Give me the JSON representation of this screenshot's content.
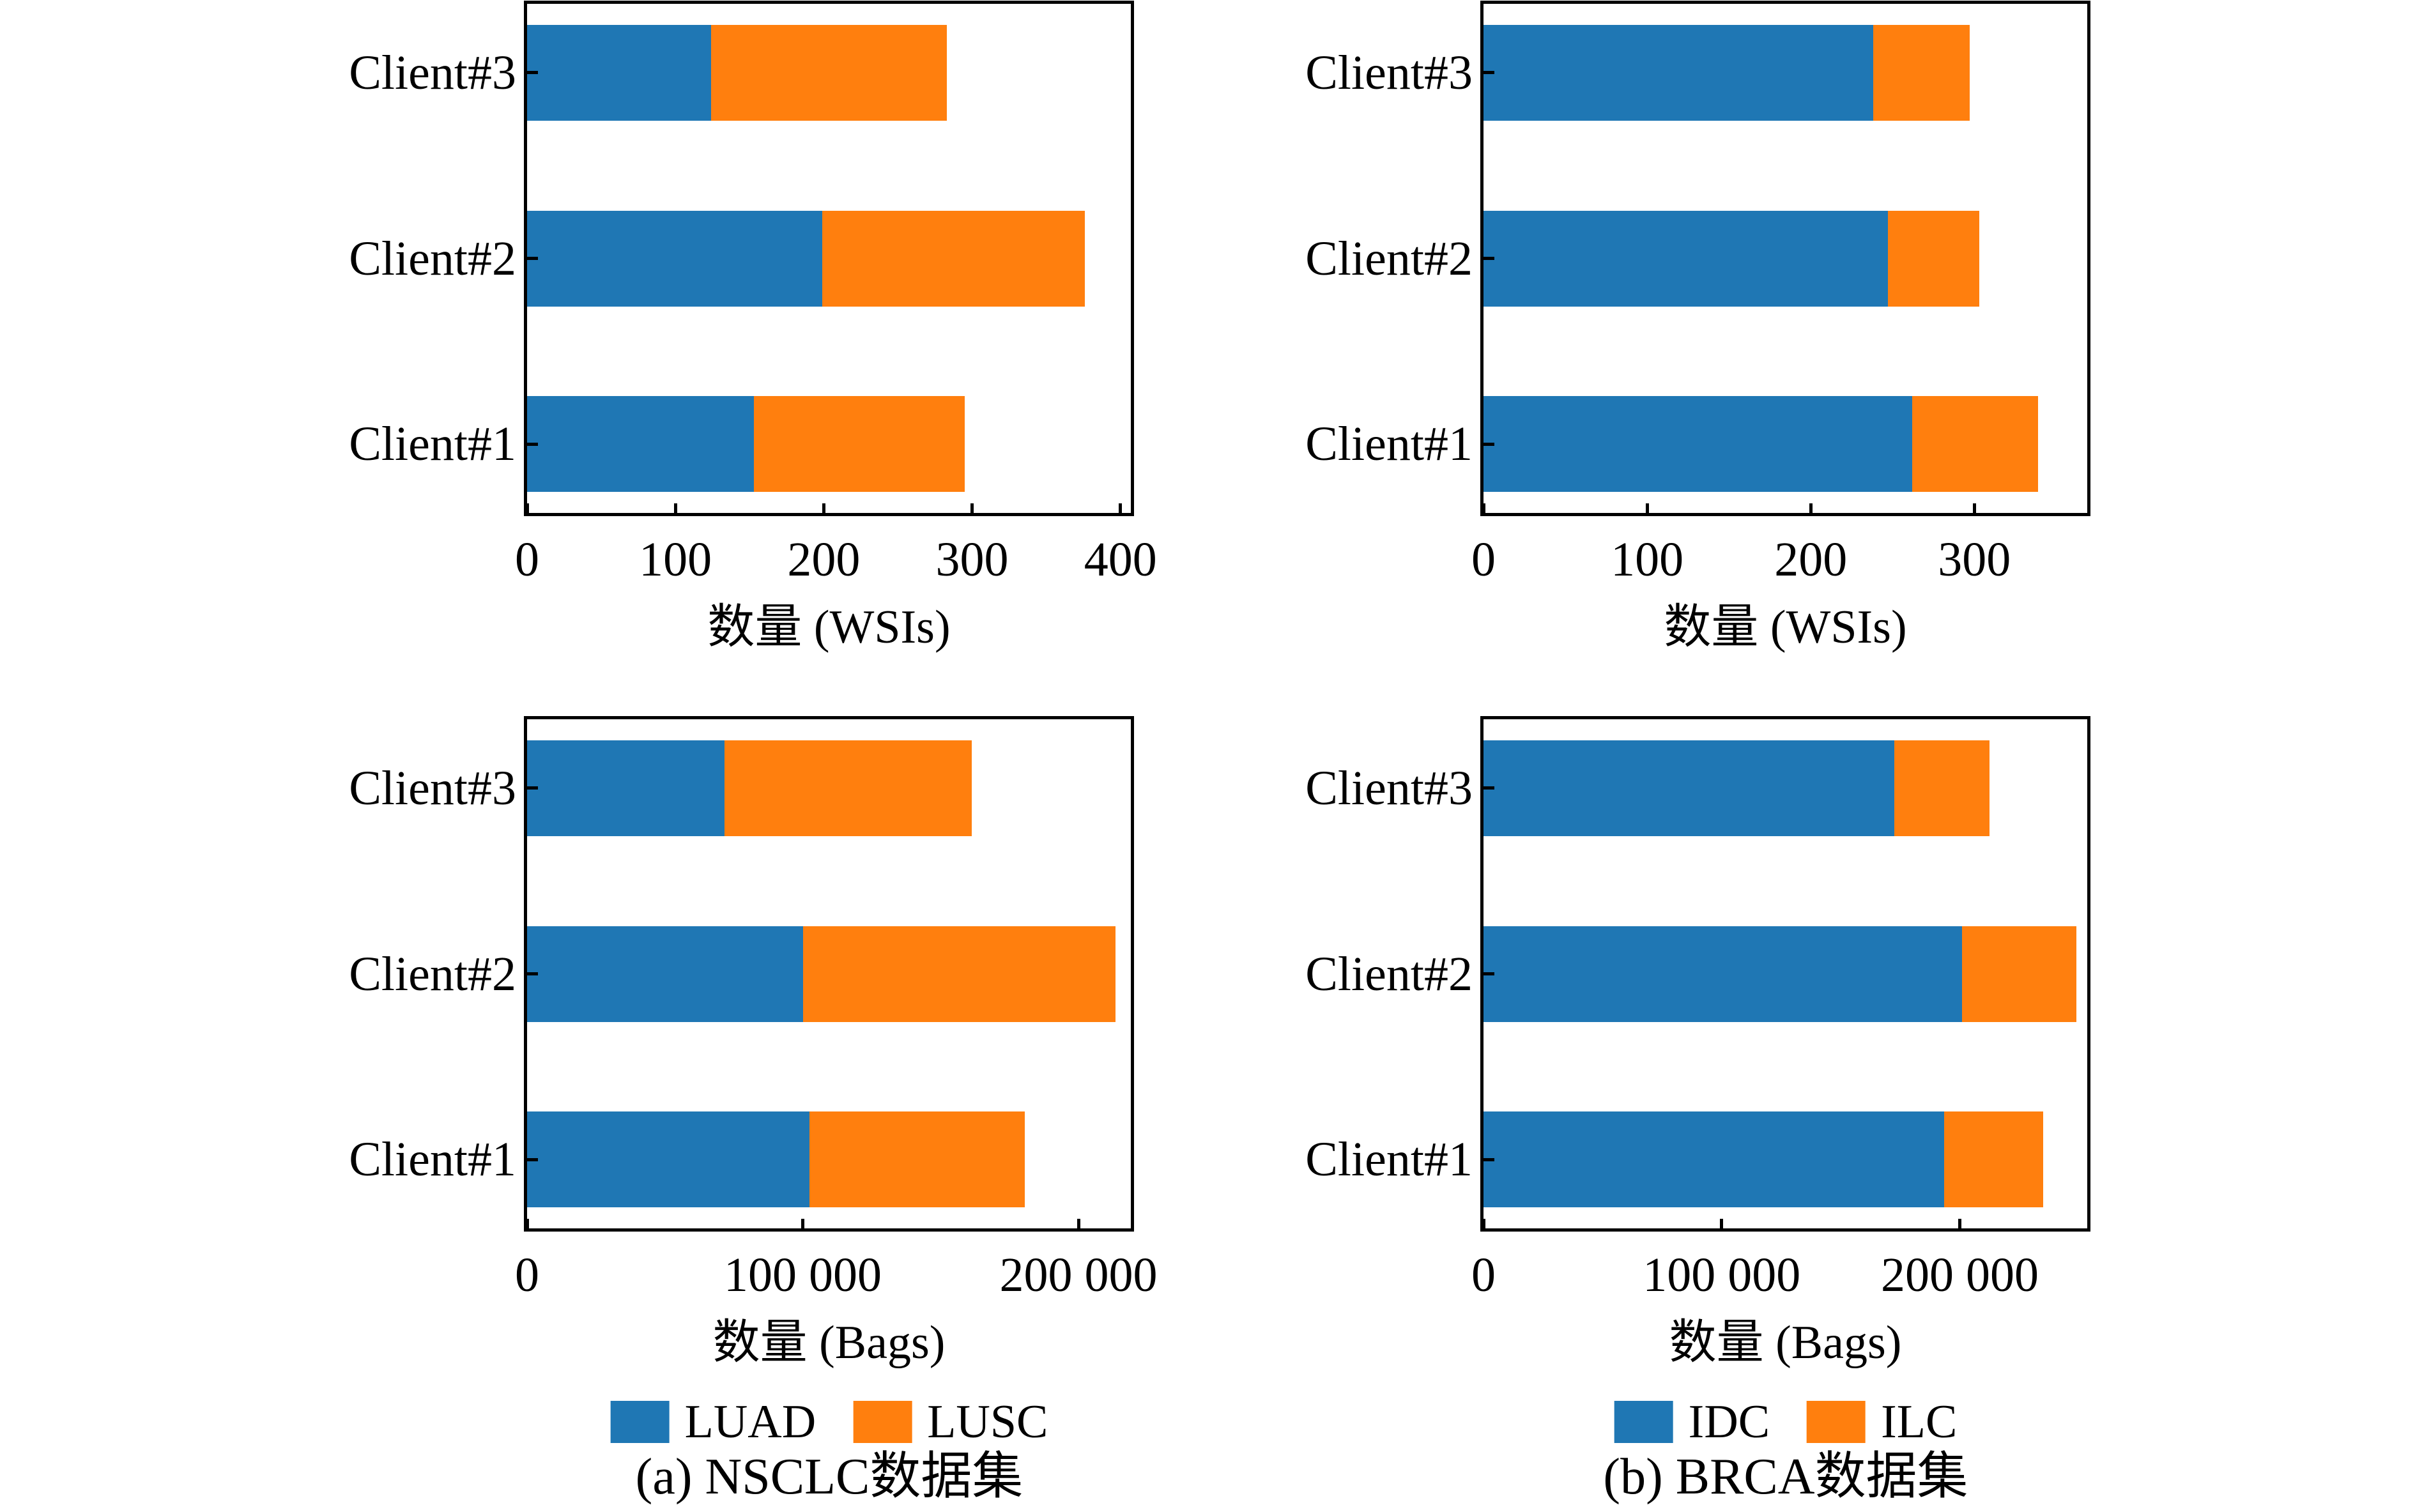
{
  "figure": {
    "background": "#ffffff",
    "frame_color": "#000000",
    "tick_style": "inward",
    "left": {
      "legend": [
        {
          "label": "LUAD",
          "color": "#1f77b4"
        },
        {
          "label": "LUSC",
          "color": "#ff7f0e"
        }
      ],
      "caption": "(a) NSCLC数据集"
    },
    "right": {
      "legend": [
        {
          "label": "IDC",
          "color": "#1f77b4"
        },
        {
          "label": "ILC",
          "color": "#ff7f0e"
        }
      ],
      "caption": "(b) BRCA数据集"
    }
  },
  "chart_data": [
    {
      "id": "nsclc-wsis",
      "position": "top-left",
      "type": "bar",
      "orientation": "horizontal",
      "stacked": true,
      "title": "",
      "xlabel": "数量 (WSIs)",
      "ylabel": "",
      "categories_top_to_bottom": [
        "Client#3",
        "Client#2",
        "Client#1"
      ],
      "series": [
        {
          "name": "LUAD",
          "color": "#1f77b4",
          "values": [
            124,
            199,
            153
          ]
        },
        {
          "name": "LUSC",
          "color": "#ff7f0e",
          "values": [
            159,
            177,
            142
          ]
        }
      ],
      "totals": [
        283,
        376,
        295
      ],
      "xlim": [
        0,
        407
      ],
      "xticks": [
        0,
        100,
        200,
        300,
        400
      ],
      "xtick_labels": [
        "0",
        "100",
        "200",
        "300",
        "400"
      ],
      "grid": false,
      "legend_position": "shared-below-column"
    },
    {
      "id": "brca-wsis",
      "position": "top-right",
      "type": "bar",
      "orientation": "horizontal",
      "stacked": true,
      "title": "",
      "xlabel": "数量 (WSIs)",
      "ylabel": "",
      "categories_top_to_bottom": [
        "Client#3",
        "Client#2",
        "Client#1"
      ],
      "series": [
        {
          "name": "IDC",
          "color": "#1f77b4",
          "values": [
            238,
            247,
            262
          ]
        },
        {
          "name": "ILC",
          "color": "#ff7f0e",
          "values": [
            59,
            56,
            77
          ]
        }
      ],
      "totals": [
        297,
        303,
        339
      ],
      "xlim": [
        0,
        369
      ],
      "xticks": [
        0,
        100,
        200,
        300
      ],
      "xtick_labels": [
        "0",
        "100",
        "200",
        "300"
      ],
      "grid": false,
      "legend_position": "shared-below-column"
    },
    {
      "id": "nsclc-bags",
      "position": "bottom-left",
      "type": "bar",
      "orientation": "horizontal",
      "stacked": true,
      "title": "",
      "xlabel": "数量 (Bags)",
      "ylabel": "",
      "categories_top_to_bottom": [
        "Client#3",
        "Client#2",
        "Client#1"
      ],
      "series": [
        {
          "name": "LUAD",
          "color": "#1f77b4",
          "values": [
            71500,
            100200,
            102500
          ]
        },
        {
          "name": "LUSC",
          "color": "#ff7f0e",
          "values": [
            89800,
            113300,
            78000
          ]
        }
      ],
      "totals": [
        161300,
        213500,
        180500
      ],
      "xlim": [
        0,
        219000
      ],
      "xticks": [
        0,
        100000,
        200000
      ],
      "xtick_labels": [
        "0",
        "100 000",
        "200 000"
      ],
      "grid": false,
      "legend_position": "shared-below-column"
    },
    {
      "id": "brca-bags",
      "position": "bottom-right",
      "type": "bar",
      "orientation": "horizontal",
      "stacked": true,
      "title": "",
      "xlabel": "数量 (Bags)",
      "ylabel": "",
      "categories_top_to_bottom": [
        "Client#3",
        "Client#2",
        "Client#1"
      ],
      "series": [
        {
          "name": "IDC",
          "color": "#1f77b4",
          "values": [
            172500,
            201000,
            193300
          ]
        },
        {
          "name": "ILC",
          "color": "#ff7f0e",
          "values": [
            40000,
            48000,
            41700
          ]
        }
      ],
      "totals": [
        212500,
        249000,
        235000
      ],
      "xlim": [
        0,
        253500
      ],
      "xticks": [
        0,
        100000,
        200000
      ],
      "xtick_labels": [
        "0",
        "100 000",
        "200 000"
      ],
      "grid": false,
      "legend_position": "shared-below-column"
    }
  ]
}
